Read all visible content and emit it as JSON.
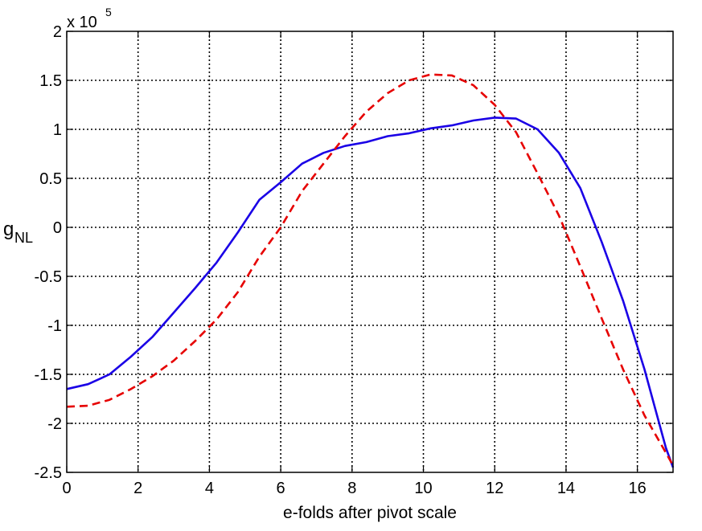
{
  "chart_data": {
    "type": "line",
    "xlabel": "e-folds after pivot scale",
    "ylabel": "g",
    "ylabel_subscript": "NL",
    "y_multiplier": {
      "base": "x 10",
      "exponent": "5"
    },
    "xlim": [
      0,
      17
    ],
    "ylim": [
      -2.5,
      2
    ],
    "x_ticks": [
      0,
      2,
      4,
      6,
      8,
      10,
      12,
      14,
      16
    ],
    "y_ticks": [
      -2.5,
      -2,
      -1.5,
      -1,
      -0.5,
      0,
      0.5,
      1,
      1.5,
      2
    ],
    "x_tick_labels": [
      "0",
      "2",
      "4",
      "6",
      "8",
      "10",
      "12",
      "14",
      "16"
    ],
    "y_tick_labels": [
      "-2.5",
      "-2",
      "-1.5",
      "-1",
      "-0.5",
      "0",
      "0.5",
      "1",
      "1.5",
      "2"
    ],
    "grid": true,
    "series": [
      {
        "color": "#1a00e6",
        "style": "solid",
        "x": [
          0,
          0.6,
          1.2,
          1.8,
          2.4,
          3.0,
          3.6,
          4.2,
          4.8,
          5.4,
          6.0,
          6.6,
          7.2,
          7.8,
          8.4,
          9.0,
          9.6,
          10.2,
          10.8,
          11.4,
          12.0,
          12.6,
          13.2,
          13.8,
          14.4,
          15.0,
          15.6,
          16.2,
          16.8,
          17.0
        ],
        "y": [
          -1.65,
          -1.6,
          -1.5,
          -1.32,
          -1.12,
          -0.87,
          -0.62,
          -0.36,
          -0.05,
          0.28,
          0.46,
          0.65,
          0.76,
          0.83,
          0.87,
          0.93,
          0.96,
          1.01,
          1.04,
          1.09,
          1.12,
          1.11,
          1.0,
          0.76,
          0.4,
          -0.15,
          -0.75,
          -1.45,
          -2.25,
          -2.45
        ]
      },
      {
        "color": "#e60000",
        "style": "dashed",
        "x": [
          0,
          0.6,
          1.2,
          1.8,
          2.4,
          3.0,
          3.6,
          4.2,
          4.8,
          5.4,
          6.0,
          6.6,
          7.2,
          7.8,
          8.4,
          9.0,
          9.6,
          10.2,
          10.8,
          11.4,
          12.0,
          12.6,
          13.2,
          13.8,
          14.4,
          15.0,
          15.6,
          16.2,
          16.8,
          17.0
        ],
        "y": [
          -1.83,
          -1.82,
          -1.76,
          -1.65,
          -1.52,
          -1.36,
          -1.16,
          -0.94,
          -0.66,
          -0.3,
          0.0,
          0.37,
          0.65,
          0.93,
          1.18,
          1.37,
          1.5,
          1.56,
          1.55,
          1.45,
          1.25,
          0.97,
          0.55,
          0.12,
          -0.4,
          -0.93,
          -1.45,
          -1.92,
          -2.3,
          -2.43
        ]
      }
    ]
  }
}
